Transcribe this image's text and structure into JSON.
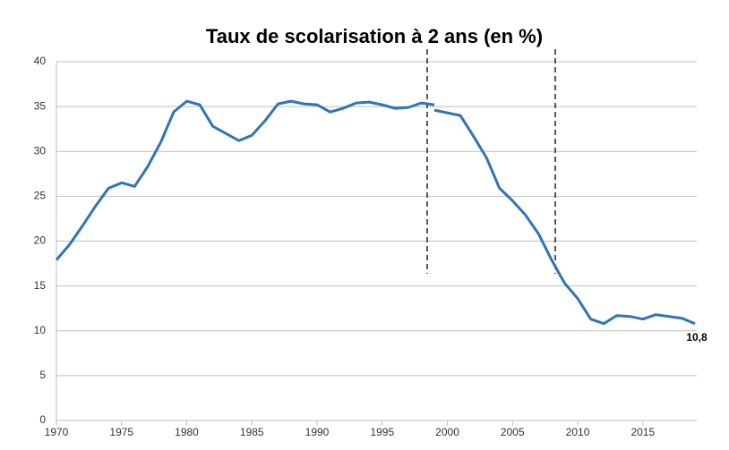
{
  "chart_data": {
    "type": "line",
    "title": "Taux de scolarisation à 2 ans (en %)",
    "x": [
      1970,
      1971,
      1972,
      1973,
      1974,
      1975,
      1976,
      1977,
      1978,
      1979,
      1980,
      1981,
      1982,
      1983,
      1984,
      1985,
      1986,
      1987,
      1988,
      1989,
      1990,
      1991,
      1992,
      1993,
      1994,
      1995,
      1996,
      1997,
      1998,
      1999,
      2000,
      2001,
      2002,
      2003,
      2004,
      2005,
      2006,
      2007,
      2008,
      2009,
      2010,
      2011,
      2012,
      2013,
      2014,
      2015,
      2016,
      2017,
      2018,
      2019
    ],
    "series": [
      {
        "color": "#2e75b6",
        "values": [
          17.9,
          19.6,
          21.7,
          23.9,
          25.9,
          26.5,
          26.1,
          28.3,
          31.0,
          34.4,
          35.6,
          35.2,
          32.8,
          32.0,
          31.2,
          31.8,
          33.4,
          35.3,
          35.6,
          35.3,
          35.2,
          34.4,
          34.8,
          35.4,
          35.5,
          35.2,
          34.8,
          34.9,
          35.4,
          35.2,
          null,
          null,
          null,
          null,
          null,
          null,
          null,
          null,
          null,
          null,
          null,
          null,
          null,
          null,
          null,
          null,
          null,
          null,
          null,
          null
        ]
      },
      {
        "color": "#2e75b6",
        "values": [
          null,
          null,
          null,
          null,
          null,
          null,
          null,
          null,
          null,
          null,
          null,
          null,
          null,
          null,
          null,
          null,
          null,
          null,
          null,
          null,
          null,
          null,
          null,
          null,
          null,
          null,
          null,
          null,
          null,
          34.6,
          34.3,
          34.0,
          31.7,
          29.3,
          25.9,
          24.5,
          22.9,
          20.8,
          17.9,
          15.3,
          13.6,
          11.3,
          10.8,
          11.7,
          11.6,
          11.3,
          11.8,
          11.6,
          11.4,
          10.8
        ],
        "value_labels": [
          null,
          null,
          null,
          null,
          null,
          null,
          null,
          null,
          null,
          null,
          null,
          null,
          null,
          null,
          null,
          null,
          null,
          null,
          null,
          null,
          null,
          null,
          null,
          null,
          null,
          null,
          null,
          null,
          null,
          null,
          null,
          null,
          null,
          null,
          null,
          null,
          null,
          null,
          null,
          null,
          null,
          null,
          null,
          null,
          null,
          null,
          null,
          null,
          null,
          "10,8"
        ]
      }
    ],
    "xlim": [
      1970,
      2019
    ],
    "xticks": [
      1970,
      1975,
      1980,
      1985,
      1990,
      1995,
      2000,
      2005,
      2010,
      2015
    ],
    "ylim": [
      0,
      40
    ],
    "yticks": [
      0,
      5,
      10,
      15,
      20,
      25,
      30,
      35,
      40
    ],
    "grid": true
  }
}
